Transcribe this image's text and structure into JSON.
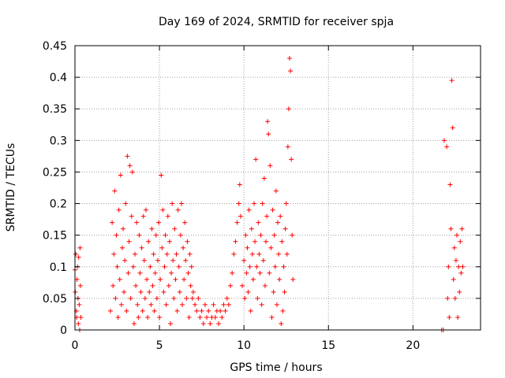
{
  "chart_data": {
    "type": "scatter",
    "title": "Day 169 of 2024, SRMTID for receiver spja",
    "xlabel": "GPS time / hours",
    "ylabel": "SRMTID / TECUs",
    "xlim": [
      0,
      24
    ],
    "ylim": [
      0,
      0.45
    ],
    "xticks": [
      "0",
      "5",
      "10",
      "15",
      "20"
    ],
    "yticks": [
      "0",
      "0.05",
      "0.1",
      "0.15",
      "0.2",
      "0.25",
      "0.3",
      "0.35",
      "0.4",
      "0.45"
    ],
    "grid": true,
    "marker": "plus",
    "color": "#ff0000",
    "series": [
      {
        "points": [
          [
            0.0,
            0.095
          ],
          [
            0.02,
            0.06
          ],
          [
            0.05,
            0.12
          ],
          [
            0.08,
            0.03
          ],
          [
            0.1,
            0.02
          ],
          [
            0.12,
            0.08
          ],
          [
            0.15,
            0.1
          ],
          [
            0.18,
            0.05
          ],
          [
            0.2,
            0.01
          ],
          [
            0.22,
            0.115
          ],
          [
            0.25,
            0.04
          ],
          [
            0.28,
            0.0
          ],
          [
            0.3,
            0.13
          ],
          [
            0.32,
            0.07
          ],
          [
            0.35,
            0.02
          ],
          [
            2.1,
            0.03
          ],
          [
            2.2,
            0.17
          ],
          [
            2.25,
            0.07
          ],
          [
            2.3,
            0.12
          ],
          [
            2.35,
            0.22
          ],
          [
            2.4,
            0.05
          ],
          [
            2.45,
            0.15
          ],
          [
            2.5,
            0.1
          ],
          [
            2.55,
            0.02
          ],
          [
            2.6,
            0.19
          ],
          [
            2.65,
            0.08
          ],
          [
            2.7,
            0.245
          ],
          [
            2.75,
            0.04
          ],
          [
            2.8,
            0.13
          ],
          [
            2.85,
            0.16
          ],
          [
            2.9,
            0.06
          ],
          [
            2.95,
            0.11
          ],
          [
            3.0,
            0.2
          ],
          [
            3.05,
            0.03
          ],
          [
            3.1,
            0.275
          ],
          [
            3.15,
            0.09
          ],
          [
            3.2,
            0.14
          ],
          [
            3.25,
            0.26
          ],
          [
            3.3,
            0.05
          ],
          [
            3.35,
            0.18
          ],
          [
            3.4,
            0.25
          ],
          [
            3.45,
            0.1
          ],
          [
            3.5,
            0.01
          ],
          [
            3.55,
            0.12
          ],
          [
            3.6,
            0.07
          ],
          [
            3.65,
            0.17
          ],
          [
            3.7,
            0.04
          ],
          [
            3.75,
            0.02
          ],
          [
            3.8,
            0.15
          ],
          [
            3.85,
            0.09
          ],
          [
            3.9,
            0.06
          ],
          [
            3.95,
            0.13
          ],
          [
            4.0,
            0.03
          ],
          [
            4.05,
            0.18
          ],
          [
            4.1,
            0.11
          ],
          [
            4.15,
            0.05
          ],
          [
            4.2,
            0.19
          ],
          [
            4.25,
            0.08
          ],
          [
            4.3,
            0.02
          ],
          [
            4.35,
            0.14
          ],
          [
            4.4,
            0.06
          ],
          [
            4.45,
            0.1
          ],
          [
            4.5,
            0.04
          ],
          [
            4.55,
            0.16
          ],
          [
            4.6,
            0.07
          ],
          [
            4.65,
            0.12
          ],
          [
            4.7,
            0.03
          ],
          [
            4.75,
            0.09
          ],
          [
            4.8,
            0.15
          ],
          [
            4.85,
            0.05
          ],
          [
            4.9,
            0.11
          ],
          [
            4.95,
            0.17
          ],
          [
            5.0,
            0.02
          ],
          [
            5.05,
            0.08
          ],
          [
            5.1,
            0.245
          ],
          [
            5.15,
            0.13
          ],
          [
            5.2,
            0.19
          ],
          [
            5.25,
            0.06
          ],
          [
            5.3,
            0.1
          ],
          [
            5.35,
            0.15
          ],
          [
            5.4,
            0.04
          ],
          [
            5.45,
            0.12
          ],
          [
            5.5,
            0.18
          ],
          [
            5.55,
            0.07
          ],
          [
            5.6,
            0.14
          ],
          [
            5.65,
            0.01
          ],
          [
            5.7,
            0.09
          ],
          [
            5.75,
            0.2
          ],
          [
            5.8,
            0.11
          ],
          [
            5.85,
            0.05
          ],
          [
            5.9,
            0.16
          ],
          [
            5.95,
            0.08
          ],
          [
            6.0,
            0.12
          ],
          [
            6.05,
            0.03
          ],
          [
            6.1,
            0.19
          ],
          [
            6.15,
            0.1
          ],
          [
            6.2,
            0.06
          ],
          [
            6.25,
            0.15
          ],
          [
            6.3,
            0.2
          ],
          [
            6.35,
            0.04
          ],
          [
            6.4,
            0.13
          ],
          [
            6.45,
            0.08
          ],
          [
            6.5,
            0.17
          ],
          [
            6.55,
            0.11
          ],
          [
            6.6,
            0.05
          ],
          [
            6.65,
            0.14
          ],
          [
            6.7,
            0.09
          ],
          [
            6.75,
            0.02
          ],
          [
            6.8,
            0.12
          ],
          [
            6.85,
            0.07
          ],
          [
            6.9,
            0.1
          ],
          [
            6.95,
            0.05
          ],
          [
            7.0,
            0.06
          ],
          [
            7.1,
            0.04
          ],
          [
            7.2,
            0.03
          ],
          [
            7.3,
            0.05
          ],
          [
            7.4,
            0.02
          ],
          [
            7.5,
            0.03
          ],
          [
            7.6,
            0.01
          ],
          [
            7.7,
            0.04
          ],
          [
            7.8,
            0.02
          ],
          [
            7.9,
            0.03
          ],
          [
            8.0,
            0.01
          ],
          [
            8.1,
            0.02
          ],
          [
            8.2,
            0.04
          ],
          [
            8.3,
            0.02
          ],
          [
            8.4,
            0.03
          ],
          [
            8.5,
            0.01
          ],
          [
            8.6,
            0.03
          ],
          [
            8.7,
            0.02
          ],
          [
            8.8,
            0.04
          ],
          [
            8.9,
            0.03
          ],
          [
            9.0,
            0.05
          ],
          [
            9.1,
            0.04
          ],
          [
            9.2,
            0.07
          ],
          [
            9.3,
            0.09
          ],
          [
            9.4,
            0.12
          ],
          [
            9.5,
            0.14
          ],
          [
            9.6,
            0.17
          ],
          [
            9.7,
            0.2
          ],
          [
            9.75,
            0.23
          ],
          [
            9.8,
            0.18
          ],
          [
            9.9,
            0.07
          ],
          [
            10.0,
            0.11
          ],
          [
            10.05,
            0.05
          ],
          [
            10.1,
            0.15
          ],
          [
            10.15,
            0.09
          ],
          [
            10.2,
            0.13
          ],
          [
            10.25,
            0.06
          ],
          [
            10.3,
            0.19
          ],
          [
            10.35,
            0.1
          ],
          [
            10.4,
            0.03
          ],
          [
            10.45,
            0.16
          ],
          [
            10.5,
            0.12
          ],
          [
            10.55,
            0.08
          ],
          [
            10.6,
            0.2
          ],
          [
            10.65,
            0.14
          ],
          [
            10.7,
            0.27
          ],
          [
            10.75,
            0.1
          ],
          [
            10.8,
            0.05
          ],
          [
            10.85,
            0.17
          ],
          [
            10.9,
            0.12
          ],
          [
            10.95,
            0.09
          ],
          [
            11.0,
            0.15
          ],
          [
            11.05,
            0.04
          ],
          [
            11.1,
            0.2
          ],
          [
            11.15,
            0.11
          ],
          [
            11.2,
            0.24
          ],
          [
            11.25,
            0.07
          ],
          [
            11.3,
            0.14
          ],
          [
            11.35,
            0.18
          ],
          [
            11.4,
            0.33
          ],
          [
            11.45,
            0.31
          ],
          [
            11.5,
            0.09
          ],
          [
            11.55,
            0.26
          ],
          [
            11.6,
            0.13
          ],
          [
            11.65,
            0.02
          ],
          [
            11.7,
            0.19
          ],
          [
            11.75,
            0.06
          ],
          [
            11.8,
            0.15
          ],
          [
            11.85,
            0.1
          ],
          [
            11.9,
            0.22
          ],
          [
            11.95,
            0.04
          ],
          [
            12.0,
            0.17
          ],
          [
            12.05,
            0.12
          ],
          [
            12.1,
            0.08
          ],
          [
            12.15,
            0.18
          ],
          [
            12.2,
            0.01
          ],
          [
            12.25,
            0.14
          ],
          [
            12.3,
            0.03
          ],
          [
            12.35,
            0.1
          ],
          [
            12.4,
            0.06
          ],
          [
            12.45,
            0.16
          ],
          [
            12.5,
            0.2
          ],
          [
            12.55,
            0.12
          ],
          [
            12.6,
            0.29
          ],
          [
            12.65,
            0.35
          ],
          [
            12.7,
            0.43
          ],
          [
            12.75,
            0.41
          ],
          [
            12.8,
            0.27
          ],
          [
            12.85,
            0.15
          ],
          [
            12.9,
            0.08
          ],
          [
            21.7,
            0.0
          ],
          [
            21.8,
            0.0
          ],
          [
            21.85,
            0.3
          ],
          [
            22.0,
            0.29
          ],
          [
            22.05,
            0.05
          ],
          [
            22.1,
            0.1
          ],
          [
            22.15,
            0.02
          ],
          [
            22.2,
            0.23
          ],
          [
            22.25,
            0.16
          ],
          [
            22.3,
            0.395
          ],
          [
            22.35,
            0.32
          ],
          [
            22.4,
            0.08
          ],
          [
            22.45,
            0.13
          ],
          [
            22.5,
            0.05
          ],
          [
            22.55,
            0.11
          ],
          [
            22.6,
            0.15
          ],
          [
            22.65,
            0.02
          ],
          [
            22.7,
            0.1
          ],
          [
            22.75,
            0.06
          ],
          [
            22.8,
            0.14
          ],
          [
            22.85,
            0.09
          ],
          [
            22.9,
            0.16
          ],
          [
            22.95,
            0.1
          ]
        ]
      }
    ]
  }
}
